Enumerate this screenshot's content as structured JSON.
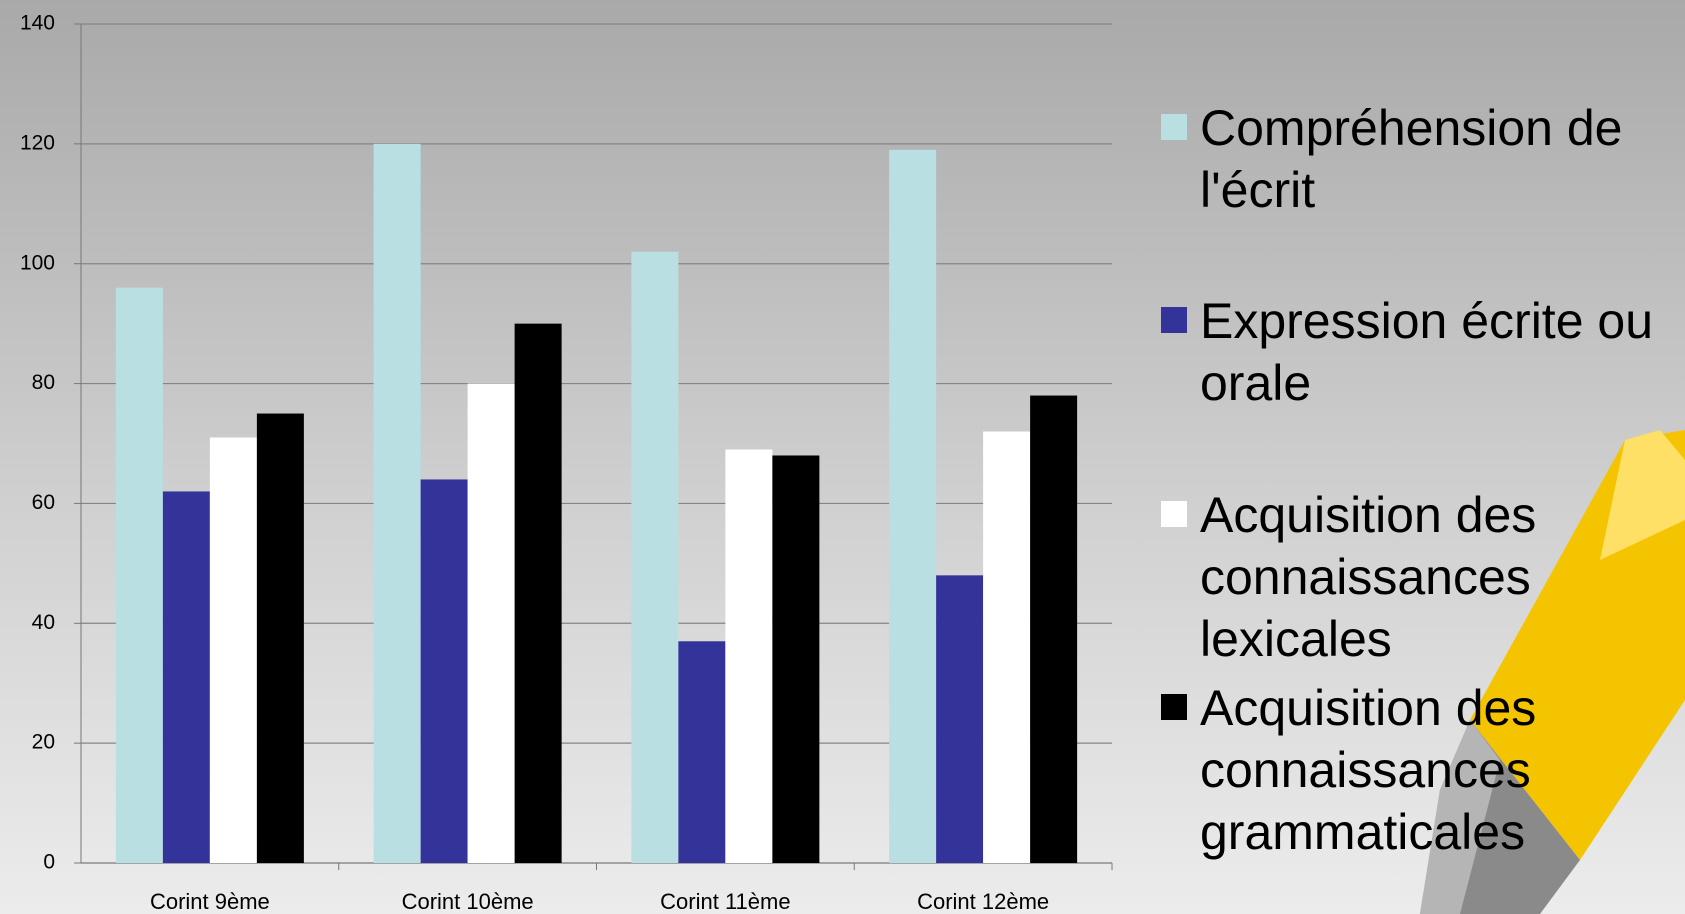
{
  "chart_data": {
    "type": "bar",
    "categories": [
      "Corint 9ème",
      "Corint 10ème",
      "Corint 11ème",
      "Corint 12ème"
    ],
    "series": [
      {
        "name": "Compréhension de l'écrit",
        "color": "#b9dfe3",
        "values": [
          96,
          120,
          102,
          119
        ]
      },
      {
        "name": "Expression écrite ou orale",
        "color": "#333399",
        "values": [
          62,
          64,
          37,
          48
        ]
      },
      {
        "name": "Acquisition des connaissances lexicales",
        "color": "#ffffff",
        "values": [
          71,
          80,
          69,
          72
        ]
      },
      {
        "name": "Acquisition des connaissances grammaticales",
        "color": "#000000",
        "values": [
          75,
          90,
          68,
          78
        ]
      }
    ],
    "ylim": [
      0,
      140
    ],
    "yticks": [
      0,
      20,
      40,
      60,
      80,
      100,
      120,
      140
    ],
    "grid": true,
    "legend": "right"
  }
}
